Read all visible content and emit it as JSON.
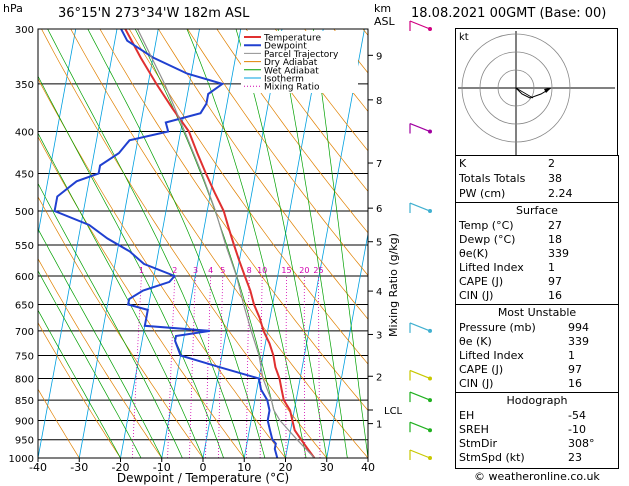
{
  "header": {
    "hpa": "hPa",
    "location": "36°15'N  273°34'W  182m  ASL",
    "km": "km",
    "asl": "ASL",
    "datetime": "18.08.2021  00GMT  (Base: 00)"
  },
  "legend": [
    "Temperature",
    "Dewpoint",
    "Parcel Trajectory",
    "Dry Adiabat",
    "Wet Adiabat",
    "Isotherm",
    "Mixing Ratio"
  ],
  "legend_colors": [
    "#e03030",
    "#2040d0",
    "#909090",
    "#e08000",
    "#00a000",
    "#00a0e0",
    "#d000b0"
  ],
  "chart_data": {
    "type": "line",
    "title": "Skew-T log-P",
    "xlabel": "Dewpoint / Temperature (°C)",
    "ylabel": "hPa",
    "right_label": "Mixing Ratio (g/kg)",
    "x_ticks": [
      -40,
      -30,
      -20,
      -10,
      0,
      10,
      20,
      30,
      40
    ],
    "pressure_levels": [
      300,
      350,
      400,
      450,
      500,
      550,
      600,
      650,
      700,
      750,
      800,
      850,
      900,
      950,
      1000
    ],
    "km_ticks": [
      {
        "km": "1",
        "p": 908
      },
      {
        "km": "2",
        "p": 795
      },
      {
        "km": "3",
        "p": 707
      },
      {
        "km": "4",
        "p": 626
      },
      {
        "km": "5",
        "p": 545
      },
      {
        "km": "6",
        "p": 496
      },
      {
        "km": "7",
        "p": 437
      },
      {
        "km": "8",
        "p": 366
      },
      {
        "km": "9",
        "p": 323
      }
    ],
    "lcl_label": "LCL",
    "lcl_p": 874,
    "mixing_ratio_labels": [
      "1",
      "2",
      "3",
      "4",
      "5",
      "8",
      "10",
      "15",
      "20",
      "25"
    ],
    "series": [
      {
        "name": "Temperature",
        "color": "#e03030",
        "p": [
          1000,
          975,
          950,
          925,
          900,
          875,
          850,
          825,
          800,
          775,
          750,
          725,
          700,
          675,
          650,
          625,
          600,
          575,
          550,
          525,
          500,
          475,
          450,
          425,
          400,
          375,
          350,
          325,
          300
        ],
        "t": [
          27,
          25,
          23,
          21,
          20,
          19,
          17,
          16,
          15,
          13.5,
          12.5,
          11,
          9,
          7.5,
          5.5,
          4,
          2,
          0,
          -2,
          -4,
          -6,
          -9,
          -12,
          -15,
          -18,
          -23,
          -28,
          -33,
          -38
        ]
      },
      {
        "name": "Dewpoint",
        "color": "#2040d0",
        "p": [
          1000,
          975,
          960,
          950,
          925,
          900,
          875,
          850,
          825,
          800,
          775,
          760,
          750,
          720,
          710,
          700,
          690,
          675,
          660,
          650,
          640,
          625,
          610,
          600,
          580,
          560,
          540,
          520,
          500,
          480,
          460,
          450,
          440,
          425,
          410,
          400,
          390,
          380,
          370,
          360,
          350,
          340,
          325,
          310,
          300
        ],
        "t": [
          18,
          17,
          17,
          16,
          15,
          14,
          14,
          13,
          11,
          10,
          0,
          -6,
          -10,
          -12,
          -12,
          -4,
          -20,
          -20,
          -20,
          -25,
          -25,
          -22,
          -16,
          -15,
          -23,
          -27,
          -33,
          -38,
          -47,
          -47,
          -43,
          -38,
          -38,
          -34,
          -32,
          -23,
          -24,
          -16,
          -15,
          -15,
          -12,
          -21,
          -30,
          -37,
          -39
        ]
      },
      {
        "name": "Parcel Trajectory",
        "color": "#909090",
        "p": [
          1000,
          950,
          900,
          874,
          850,
          800,
          750,
          700,
          650,
          600,
          550,
          500,
          450,
          400,
          350,
          300
        ],
        "t": [
          27,
          22,
          17,
          15,
          14,
          11,
          9,
          6,
          3,
          0,
          -4,
          -8,
          -13,
          -19,
          -26,
          -35
        ]
      }
    ],
    "grid": true
  },
  "indices": {
    "rows": [
      {
        "label": "K",
        "value": "2"
      },
      {
        "label": "Totals Totals",
        "value": "38"
      },
      {
        "label": "PW (cm)",
        "value": "2.24"
      }
    ]
  },
  "surface": {
    "title": "Surface",
    "rows": [
      {
        "label": "Temp (°C)",
        "value": "27"
      },
      {
        "label": "Dewp (°C)",
        "value": "18"
      },
      {
        "label": "θe(K)",
        "value": "339"
      },
      {
        "label": "Lifted Index",
        "value": "1"
      },
      {
        "label": "CAPE (J)",
        "value": "97"
      },
      {
        "label": "CIN (J)",
        "value": "16"
      }
    ]
  },
  "unstable": {
    "title": "Most Unstable",
    "rows": [
      {
        "label": "Pressure (mb)",
        "value": "994"
      },
      {
        "label": "θe (K)",
        "value": "339"
      },
      {
        "label": "Lifted Index",
        "value": "1"
      },
      {
        "label": "CAPE (J)",
        "value": "97"
      },
      {
        "label": "CIN (J)",
        "value": "16"
      }
    ]
  },
  "hodograph": {
    "title": "Hodograph",
    "unit": "kt",
    "rows": [
      {
        "label": "EH",
        "value": "-54"
      },
      {
        "label": "SREH",
        "value": "-10"
      },
      {
        "label": "StmDir",
        "value": "308°"
      },
      {
        "label": "StmSpd (kt)",
        "value": "23"
      }
    ]
  },
  "footer": {
    "credit": "© weatheronline.co.uk"
  }
}
